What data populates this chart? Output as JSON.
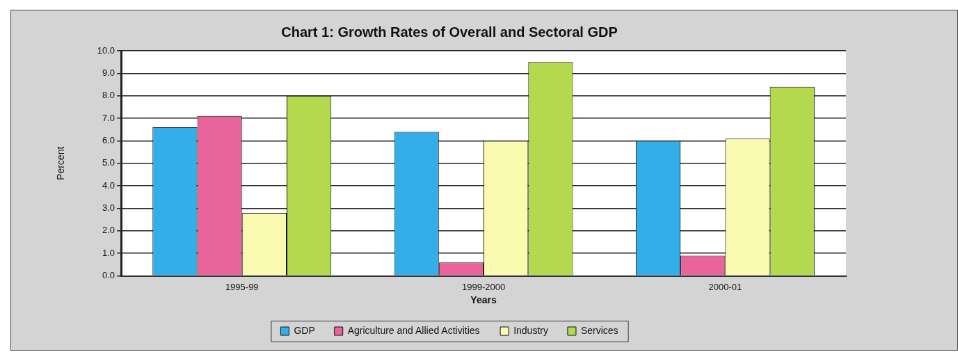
{
  "chart_data": {
    "type": "bar",
    "title": "Chart 1: Growth Rates of Overall and Sectoral GDP",
    "xlabel": "Years",
    "ylabel": "Percent",
    "categories": [
      "1995-99",
      "1999-2000",
      "2000-01"
    ],
    "series": [
      {
        "name": "GDP",
        "color": "#33aee8",
        "values": [
          6.6,
          6.4,
          6.0
        ]
      },
      {
        "name": "Agriculture and Allied Activities",
        "color": "#e8649a",
        "values": [
          7.1,
          0.6,
          0.9
        ]
      },
      {
        "name": "Industry",
        "color": "#fafab0",
        "values": [
          2.8,
          6.0,
          6.1
        ]
      },
      {
        "name": "Services",
        "color": "#b5d94e",
        "values": [
          8.0,
          9.5,
          8.4
        ]
      }
    ],
    "ylim": [
      0,
      10
    ],
    "yticks": [
      {
        "value": 0,
        "label": "0.0"
      },
      {
        "value": 1,
        "label": "1.0"
      },
      {
        "value": 2,
        "label": "2.0"
      },
      {
        "value": 3,
        "label": "3.0"
      },
      {
        "value": 4,
        "label": "4.0"
      },
      {
        "value": 5,
        "label": "5.0"
      },
      {
        "value": 6,
        "label": "6.0"
      },
      {
        "value": 7,
        "label": "7.0"
      },
      {
        "value": 8,
        "label": "8.0"
      },
      {
        "value": 9,
        "label": "9.0"
      },
      {
        "value": 10,
        "label": "10.0"
      }
    ],
    "grid": "y",
    "legend": "bottom"
  }
}
